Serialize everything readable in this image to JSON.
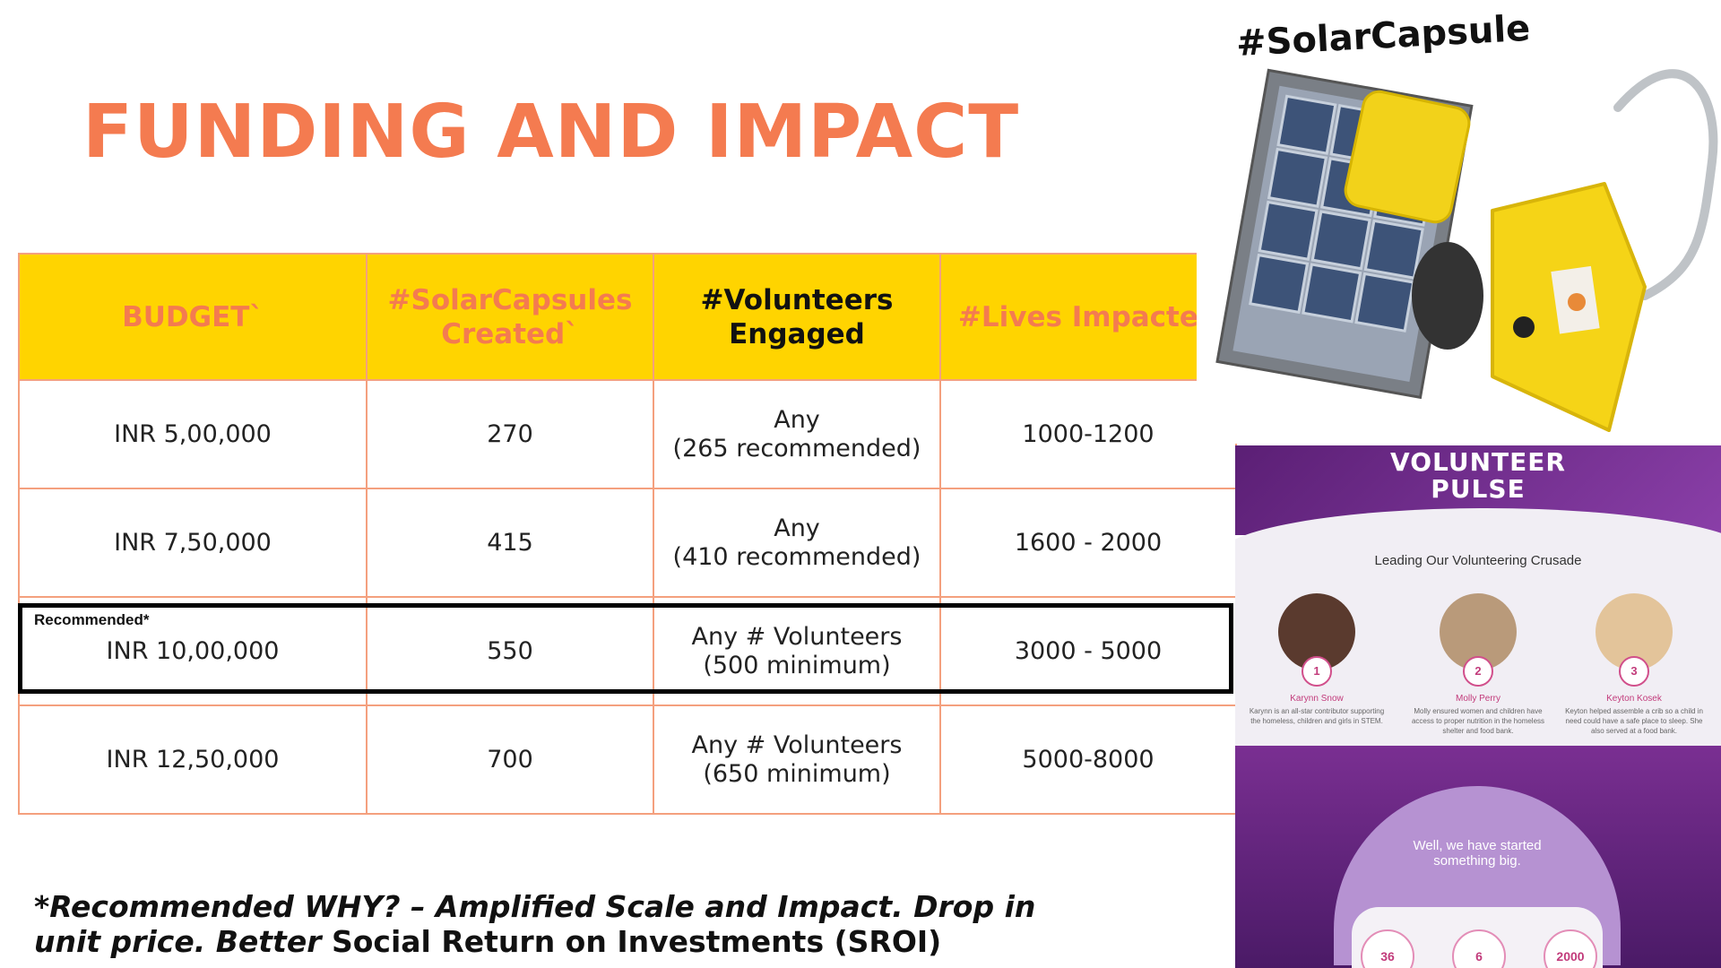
{
  "title": "FUNDING AND IMPACT",
  "table": {
    "headers": [
      "BUDGET`",
      "#SolarCapsules Created`",
      "#Volunteers Engaged",
      "#Lives Impacted"
    ],
    "rows": [
      {
        "budget": "INR 5,00,000",
        "capsules": "270",
        "vol_line1": "Any",
        "vol_line2": "(265 recommended)",
        "lives": "1000-1200"
      },
      {
        "budget": "INR 7,50,000",
        "capsules": "415",
        "vol_line1": "Any",
        "vol_line2": "(410 recommended)",
        "lives": "1600 - 2000"
      },
      {
        "budget": "INR 10,00,000",
        "capsules": "550",
        "vol_line1": "Any # Volunteers",
        "vol_line2": "(500 minimum)",
        "lives": "3000 - 5000"
      },
      {
        "budget": "INR 12,50,000",
        "capsules": "700",
        "vol_line1": "Any # Volunteers",
        "vol_line2": "(650 minimum)",
        "lives": "5000-8000"
      }
    ],
    "recommended_label": "Recommended*"
  },
  "footnote": {
    "italic_part": "*Recommended WHY? – Amplified Scale and Impact. Drop in unit price. Better",
    "normal_part": " Social Return on Investments (SROI)"
  },
  "product": {
    "hashtag": "#SolarCapsule"
  },
  "pulse": {
    "title_line1": "VOLUNTEER",
    "title_line2": "PULSE",
    "subtitle": "Leading Our Volunteering Crusade",
    "volunteers": [
      {
        "num": "1",
        "name": "Karynn Snow",
        "desc": "Karynn is an all-star contributor supporting the homeless, children and girls in STEM."
      },
      {
        "num": "2",
        "name": "Molly Perry",
        "desc": "Molly ensured women and children have access to proper nutrition in the homeless shelter and food bank."
      },
      {
        "num": "3",
        "name": "Keyton Kosek",
        "desc": "Keyton helped assemble a crib so a child in need could have a safe place to sleep. She also served at a food bank."
      }
    ],
    "bubble_line1": "Well, we have started",
    "bubble_line2": "something big.",
    "stats": [
      "36",
      "6",
      "2000"
    ]
  },
  "colors": {
    "accent": "#F47B50",
    "header_bg": "#FFD400",
    "border": "#F4A07E"
  }
}
